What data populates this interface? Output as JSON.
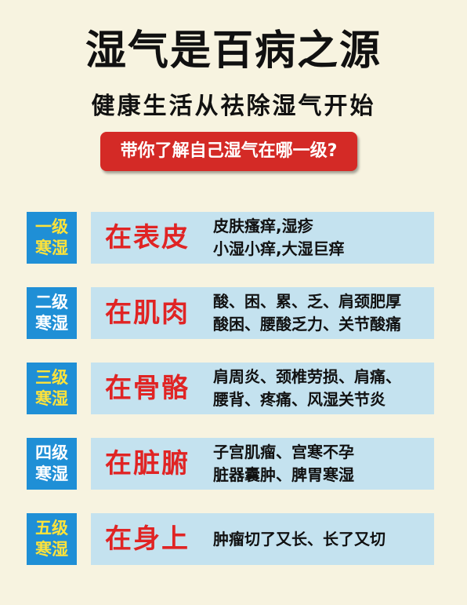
{
  "header": {
    "title": "湿气是百病之源",
    "subtitle": "健康生活从祛除湿气开始",
    "banner": "带你了解自己湿气在哪一级?"
  },
  "rows": [
    {
      "level": "一级",
      "type": "寒湿",
      "level_color": "yellow",
      "location": "在表皮",
      "line1": "皮肤瘙痒,湿疹",
      "line2": "小湿小痒,大湿巨痒"
    },
    {
      "level": "二级",
      "type": "寒湿",
      "level_color": "white",
      "location": "在肌肉",
      "line1": "酸、困、累、乏、肩颈肥厚",
      "line2": "酸困、腰酸乏力、关节酸痛"
    },
    {
      "level": "三级",
      "type": "寒湿",
      "level_color": "yellow",
      "location": "在骨骼",
      "line1": "肩周炎、颈椎劳损、肩痛、",
      "line2": "腰背、疼痛、风湿关节炎"
    },
    {
      "level": "四级",
      "type": "寒湿",
      "level_color": "white",
      "location": "在脏腑",
      "line1": "子宫肌瘤、宫寒不孕",
      "line2": "脏器囊肿、脾胃寒湿"
    },
    {
      "level": "五级",
      "type": "寒湿",
      "level_color": "yellow",
      "location": "在身上",
      "line1": "肿瘤切了又长、长了又切",
      "line2": ""
    }
  ],
  "colors": {
    "background": "#f7f3e0",
    "banner": "#d42a26",
    "level_box": "#1f8fd6",
    "content_box": "#c4e2ef",
    "location_text": "#e02424",
    "level_yellow": "#ffe33a"
  }
}
